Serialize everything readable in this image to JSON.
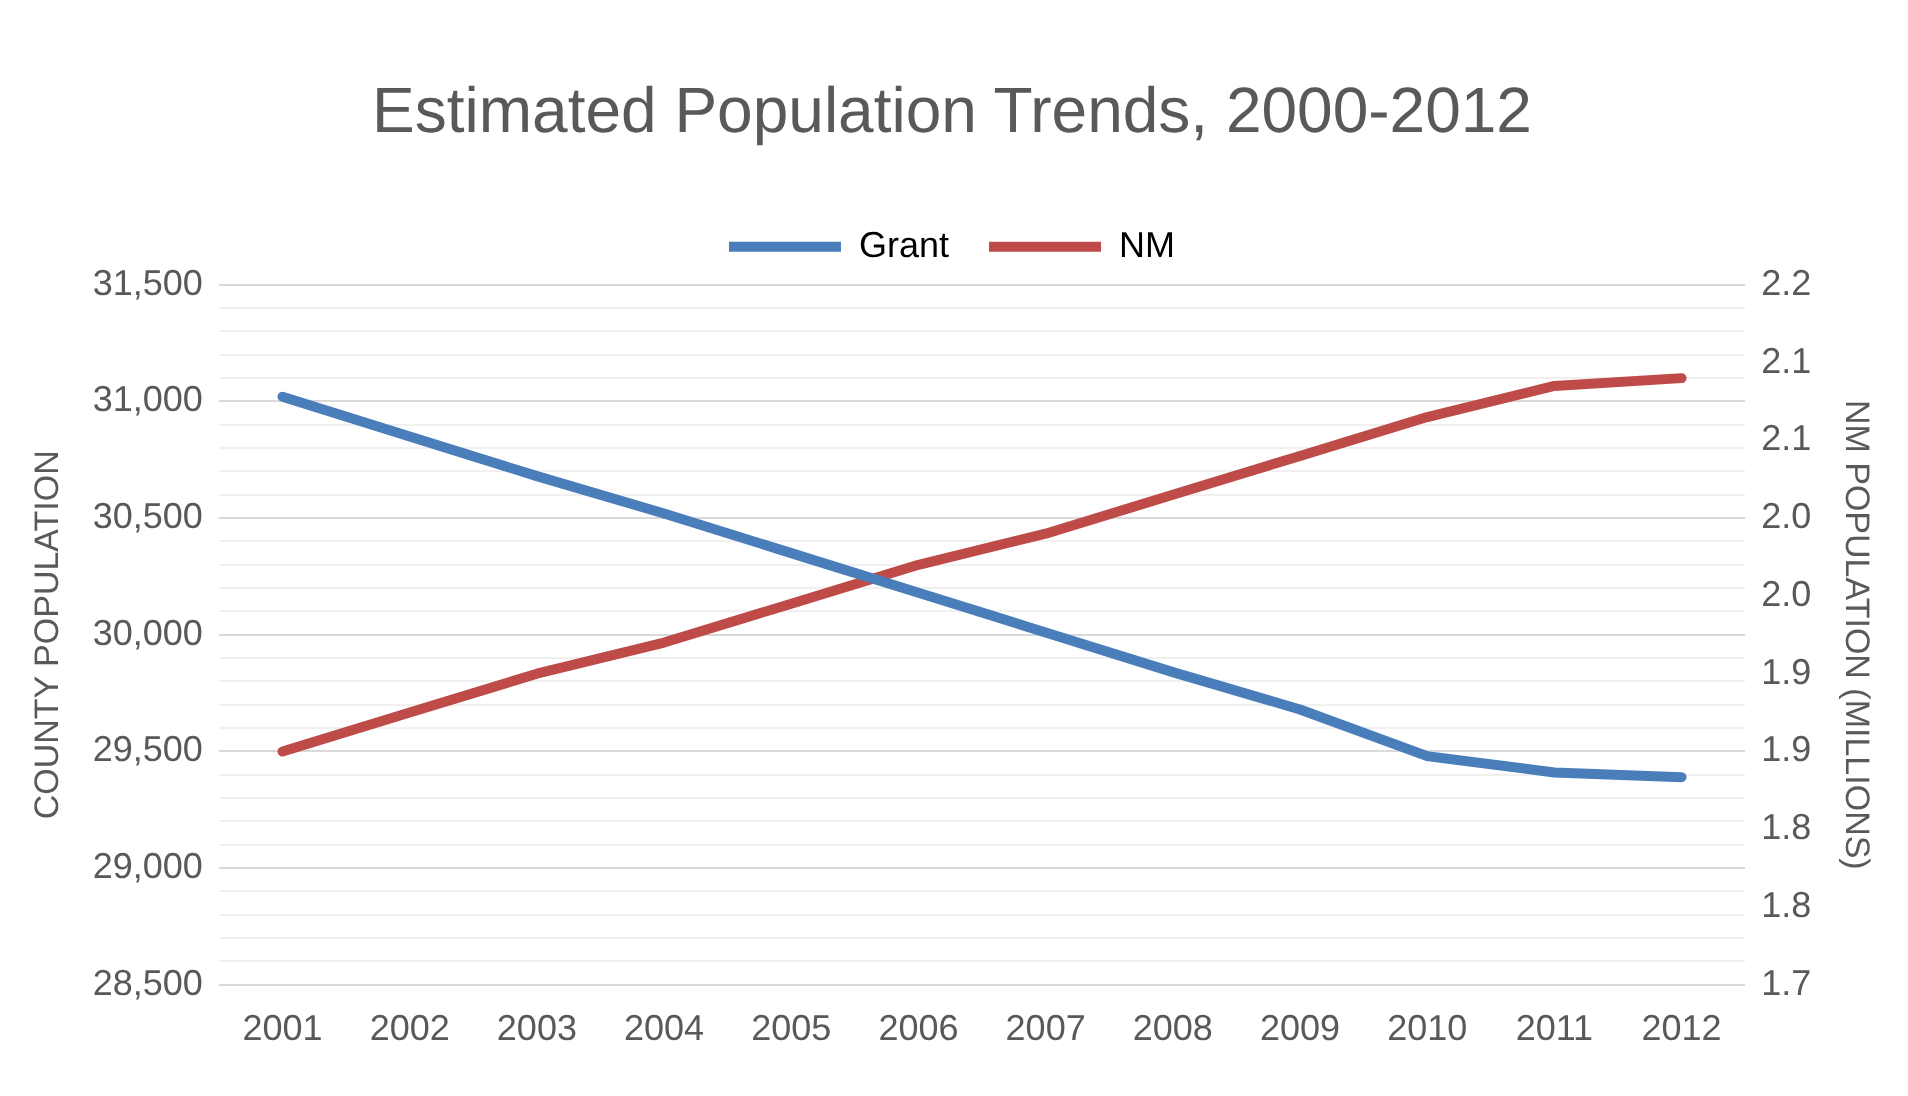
{
  "chart_data": {
    "type": "line",
    "title": "Estimated Population Trends, 2000-2012",
    "ylabel": "COUNTY POPULATION",
    "y2label": "NM POPULATION (MILLIONS)",
    "categories": [
      "2001",
      "2002",
      "2003",
      "2004",
      "2005",
      "2006",
      "2007",
      "2008",
      "2009",
      "2010",
      "2011",
      "2012"
    ],
    "series": [
      {
        "name": "Grant",
        "color": "#4a7ebb",
        "values": [
          31020,
          30850,
          30680,
          30520,
          30350,
          30180,
          30010,
          29840,
          29680,
          29480,
          29410,
          29390
        ]
      },
      {
        "name": "NM",
        "color": "#be4b48",
        "axis": "y2",
        "values": [
          1.9,
          1.925,
          1.95,
          1.97,
          1.995,
          2.02,
          2.04,
          2.065,
          2.09,
          2.115,
          2.135,
          2.14
        ]
      }
    ],
    "ylim": [
      28500,
      31500
    ],
    "yticks": [
      {
        "value": 28500,
        "label": "28,500"
      },
      {
        "value": 28600,
        "label": null
      },
      {
        "value": 28700,
        "label": null
      },
      {
        "value": 28800,
        "label": null
      },
      {
        "value": 28900,
        "label": null
      },
      {
        "value": 29000,
        "label": "29,000"
      },
      {
        "value": 29100,
        "label": null
      },
      {
        "value": 29200,
        "label": null
      },
      {
        "value": 29300,
        "label": null
      },
      {
        "value": 29400,
        "label": null
      },
      {
        "value": 29500,
        "label": "29,500"
      },
      {
        "value": 29600,
        "label": null
      },
      {
        "value": 29700,
        "label": null
      },
      {
        "value": 29800,
        "label": null
      },
      {
        "value": 29900,
        "label": null
      },
      {
        "value": 30000,
        "label": "30,000"
      },
      {
        "value": 30100,
        "label": null
      },
      {
        "value": 30200,
        "label": null
      },
      {
        "value": 30300,
        "label": null
      },
      {
        "value": 30400,
        "label": null
      },
      {
        "value": 30500,
        "label": "30,500"
      },
      {
        "value": 30600,
        "label": null
      },
      {
        "value": 30700,
        "label": null
      },
      {
        "value": 30800,
        "label": null
      },
      {
        "value": 30900,
        "label": null
      },
      {
        "value": 31000,
        "label": "31,000"
      },
      {
        "value": 31100,
        "label": null
      },
      {
        "value": 31200,
        "label": null
      },
      {
        "value": 31300,
        "label": null
      },
      {
        "value": 31400,
        "label": null
      },
      {
        "value": 31500,
        "label": "31,500"
      }
    ],
    "y2lim": [
      1.75,
      2.2
    ],
    "y2ticks": [
      {
        "value": 1.75,
        "label": "1.7"
      },
      {
        "value": 1.8,
        "label": "1.8"
      },
      {
        "value": 1.85,
        "label": "1.8"
      },
      {
        "value": 1.9,
        "label": "1.9"
      },
      {
        "value": 1.95,
        "label": "1.9"
      },
      {
        "value": 2.0,
        "label": "2.0"
      },
      {
        "value": 2.05,
        "label": "2.0"
      },
      {
        "value": 2.1,
        "label": "2.1"
      },
      {
        "value": 2.15,
        "label": "2.1"
      },
      {
        "value": 2.2,
        "label": "2.2"
      }
    ],
    "grid": "y",
    "legend": "top",
    "marker": "none",
    "line_style": "solid"
  }
}
